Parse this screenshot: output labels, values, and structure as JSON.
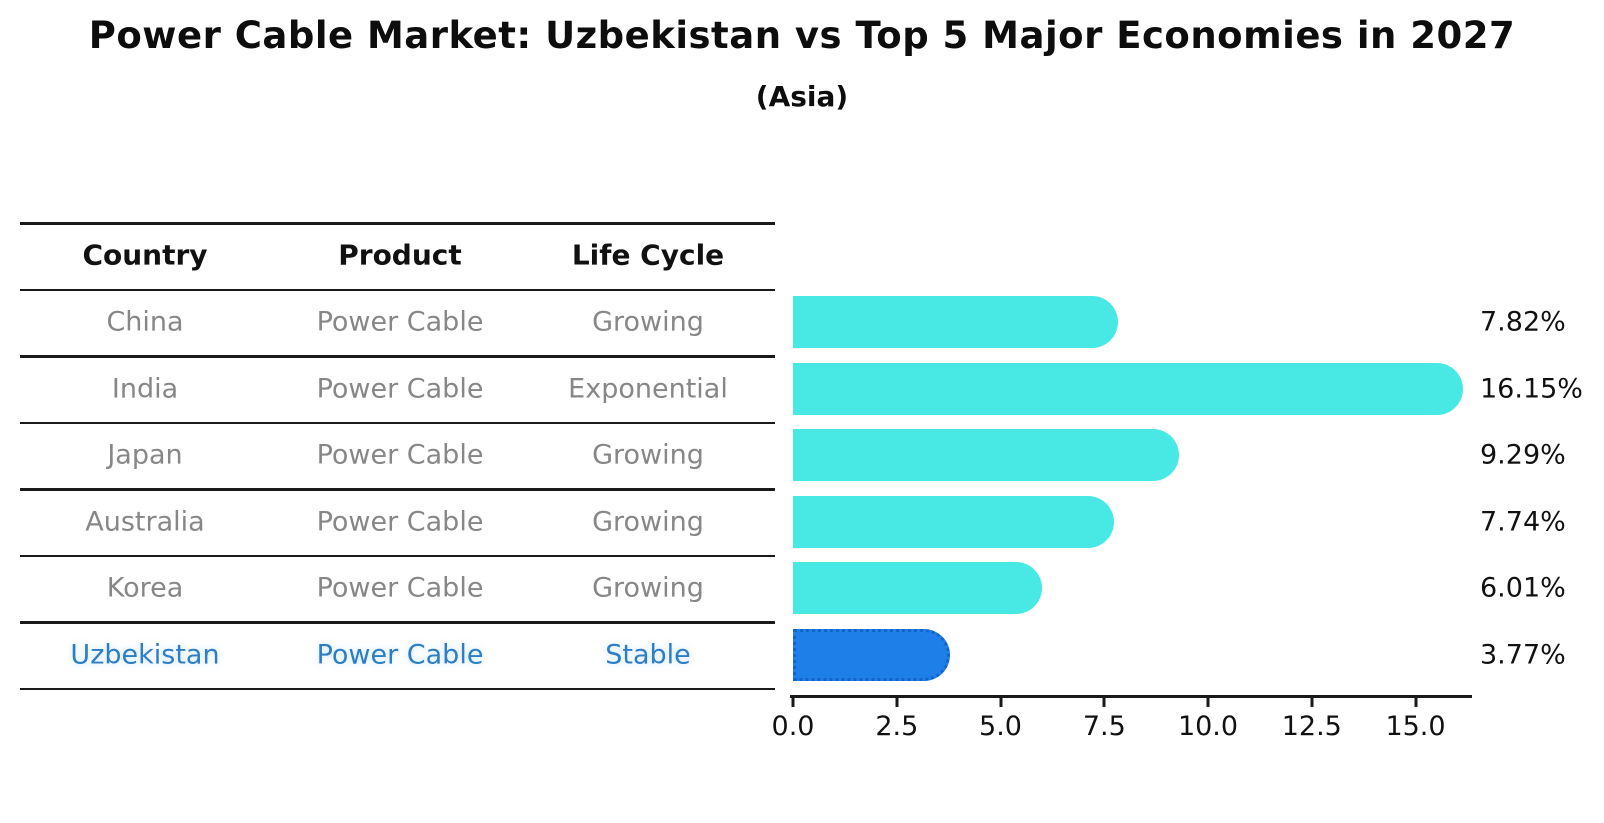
{
  "title": "Power Cable Market: Uzbekistan vs Top 5 Major Economies in 2027",
  "subtitle": "(Asia)",
  "table": {
    "headers": [
      "Country",
      "Product",
      "Life Cycle"
    ],
    "rows": [
      {
        "country": "China",
        "product": "Power Cable",
        "life_cycle": "Growing",
        "highlight": false
      },
      {
        "country": "India",
        "product": "Power Cable",
        "life_cycle": "Exponential",
        "highlight": false
      },
      {
        "country": "Japan",
        "product": "Power Cable",
        "life_cycle": "Growing",
        "highlight": false
      },
      {
        "country": "Australia",
        "product": "Power Cable",
        "life_cycle": "Growing",
        "highlight": false
      },
      {
        "country": "Korea",
        "product": "Power Cable",
        "life_cycle": "Growing",
        "highlight": false
      },
      {
        "country": "Uzbekistan",
        "product": "Power Cable",
        "life_cycle": "Stable",
        "highlight": true
      }
    ]
  },
  "chart_data": {
    "type": "bar",
    "orientation": "horizontal",
    "title": "Power Cable Market: Uzbekistan vs Top 5 Major Economies in 2027",
    "subtitle": "(Asia)",
    "categories": [
      "China",
      "India",
      "Japan",
      "Australia",
      "Korea",
      "Uzbekistan"
    ],
    "values": [
      7.82,
      16.15,
      9.29,
      7.74,
      6.01,
      3.77
    ],
    "value_labels": [
      "7.82%",
      "16.15%",
      "9.29%",
      "7.74%",
      "6.01%",
      "3.77%"
    ],
    "xlim": [
      0,
      16.55
    ],
    "x_ticks": [
      "0.0",
      "2.5",
      "5.0",
      "7.5",
      "10.0",
      "12.5",
      "15.0"
    ],
    "x_tick_values": [
      0,
      2.5,
      5,
      7.5,
      10,
      12.5,
      15
    ],
    "grid": false,
    "legend": false,
    "bar_color": "#48E8E4",
    "highlight_index": 5,
    "highlight_bar_color": "#1E7FE8",
    "highlight_border_color": "#1463C8",
    "highlight_border_style": "dotted",
    "text_color_rows": "#878787",
    "text_color_highlight": "#2E7EC6"
  }
}
